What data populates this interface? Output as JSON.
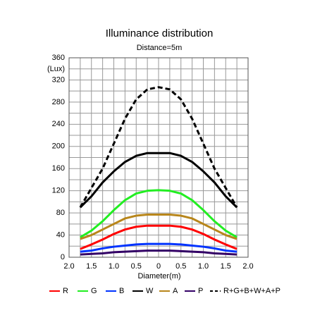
{
  "chart_data": {
    "type": "line",
    "title": "Illuminance distribution",
    "subtitle": "Distance=5m",
    "x_label": "Diameter(m)",
    "y_label": "(Lux)",
    "x": [
      -1.75,
      -1.5,
      -1.25,
      -1,
      -0.75,
      -0.5,
      -0.25,
      0,
      0.25,
      0.5,
      0.75,
      1,
      1.25,
      1.5,
      1.75
    ],
    "series": [
      {
        "name": "R",
        "color": "#ff0000",
        "values": [
          15,
          23,
          32,
          42,
          50,
          55,
          57,
          57,
          57,
          55,
          50,
          42,
          32,
          23,
          15
        ]
      },
      {
        "name": "G",
        "color": "#22ee22",
        "values": [
          36,
          48,
          65,
          85,
          103,
          115,
          120,
          121,
          120,
          115,
          103,
          85,
          65,
          48,
          36
        ]
      },
      {
        "name": "B",
        "color": "#0033ff",
        "values": [
          10,
          12,
          16,
          19,
          21,
          23,
          24,
          24,
          24,
          23,
          21,
          19,
          16,
          12,
          10
        ]
      },
      {
        "name": "W",
        "color": "#000000",
        "values": [
          90,
          110,
          135,
          155,
          172,
          183,
          188,
          188,
          188,
          183,
          172,
          155,
          135,
          110,
          90
        ]
      },
      {
        "name": "A",
        "color": "#b8861b",
        "values": [
          33,
          40,
          50,
          60,
          70,
          75,
          77,
          77,
          77,
          75,
          70,
          60,
          50,
          40,
          33
        ]
      },
      {
        "name": "P",
        "color": "#330066",
        "values": [
          5,
          6,
          7,
          9,
          10,
          11,
          12,
          12,
          12,
          11,
          10,
          9,
          7,
          6,
          5
        ]
      },
      {
        "name": "R+G+B+W+A+P",
        "color": "#000000",
        "dashed": true,
        "values": [
          90,
          125,
          160,
          205,
          250,
          285,
          303,
          307,
          303,
          285,
          250,
          205,
          160,
          125,
          90
        ]
      }
    ],
    "xlim": [
      -2,
      2
    ],
    "xticks": [
      {
        "value": -2,
        "label": "2.0"
      },
      {
        "value": -1.5,
        "label": "1.5"
      },
      {
        "value": -1,
        "label": "1.0"
      },
      {
        "value": -0.5,
        "label": "0.5"
      },
      0,
      0.5,
      {
        "value": 1,
        "label": "1.0"
      },
      1.5,
      {
        "value": 2,
        "label": "2.0"
      }
    ],
    "minor_xticks": [
      -1.75,
      -1.25,
      -0.75,
      -0.25,
      0.25,
      0.75,
      1.25,
      1.75
    ],
    "ylim": [
      0,
      360
    ],
    "yticks": [
      0,
      40,
      80,
      120,
      160,
      200,
      240,
      280,
      320,
      360
    ],
    "minor_yticks": [
      20,
      60,
      100,
      140,
      180,
      220,
      260,
      300,
      340
    ],
    "grid": true,
    "legend": "bottom"
  }
}
